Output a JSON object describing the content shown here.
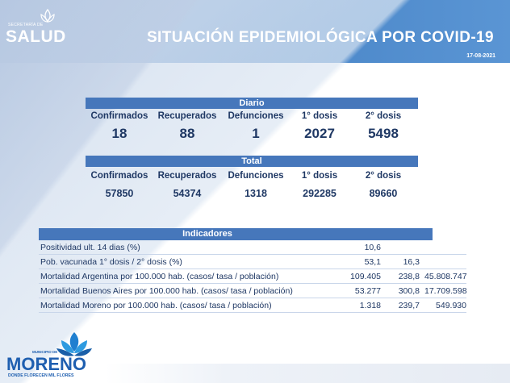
{
  "header": {
    "logo_top": "SECRETARÍA DE",
    "logo_word": "SALUD",
    "title": "SITUACIÓN EPIDEMIOLÓGICA POR COVID-19",
    "date": "17-08-2021"
  },
  "columns": [
    "Confirmados",
    "Recuperados",
    "Defunciones",
    "1° dosis",
    "2° dosis"
  ],
  "diario": {
    "label": "Diario",
    "values": [
      "18",
      "88",
      "1",
      "2027",
      "5498"
    ]
  },
  "total": {
    "label": "Total",
    "values": [
      "57850",
      "54374",
      "1318",
      "292285",
      "89660"
    ]
  },
  "indicadores": {
    "label": "Indicadores",
    "rows": [
      {
        "label": "Positividad ult. 14 dias (%)",
        "v1": "10,6",
        "v2": "",
        "v3": ""
      },
      {
        "label": "Pob. vacunada 1° dosis / 2° dosis (%)",
        "v1": "53,1",
        "v2": "16,3",
        "v3": ""
      },
      {
        "label": "Mortalidad Argentina por 100.000 hab. (casos/ tasa / población)",
        "v1": "109.405",
        "v2": "238,8",
        "v3": "45.808.747"
      },
      {
        "label": "Mortalidad Buenos Aires por 100.000 hab. (casos/ tasa / población)",
        "v1": "53.277",
        "v2": "300,8",
        "v3": "17.709.598"
      },
      {
        "label": "Mortalidad Moreno por 100.000 hab. (casos/ tasa / población)",
        "v1": "1.318",
        "v2": "239,7",
        "v3": "549.930"
      }
    ]
  },
  "footer": {
    "muni": "MUNICIPIO DE",
    "word": "MORENO",
    "tag": "DONDE FLORECEN MIL FLORES"
  },
  "colors": {
    "band": "#4677bb",
    "text": "#1f3864",
    "brand": "#1f5fb0"
  }
}
